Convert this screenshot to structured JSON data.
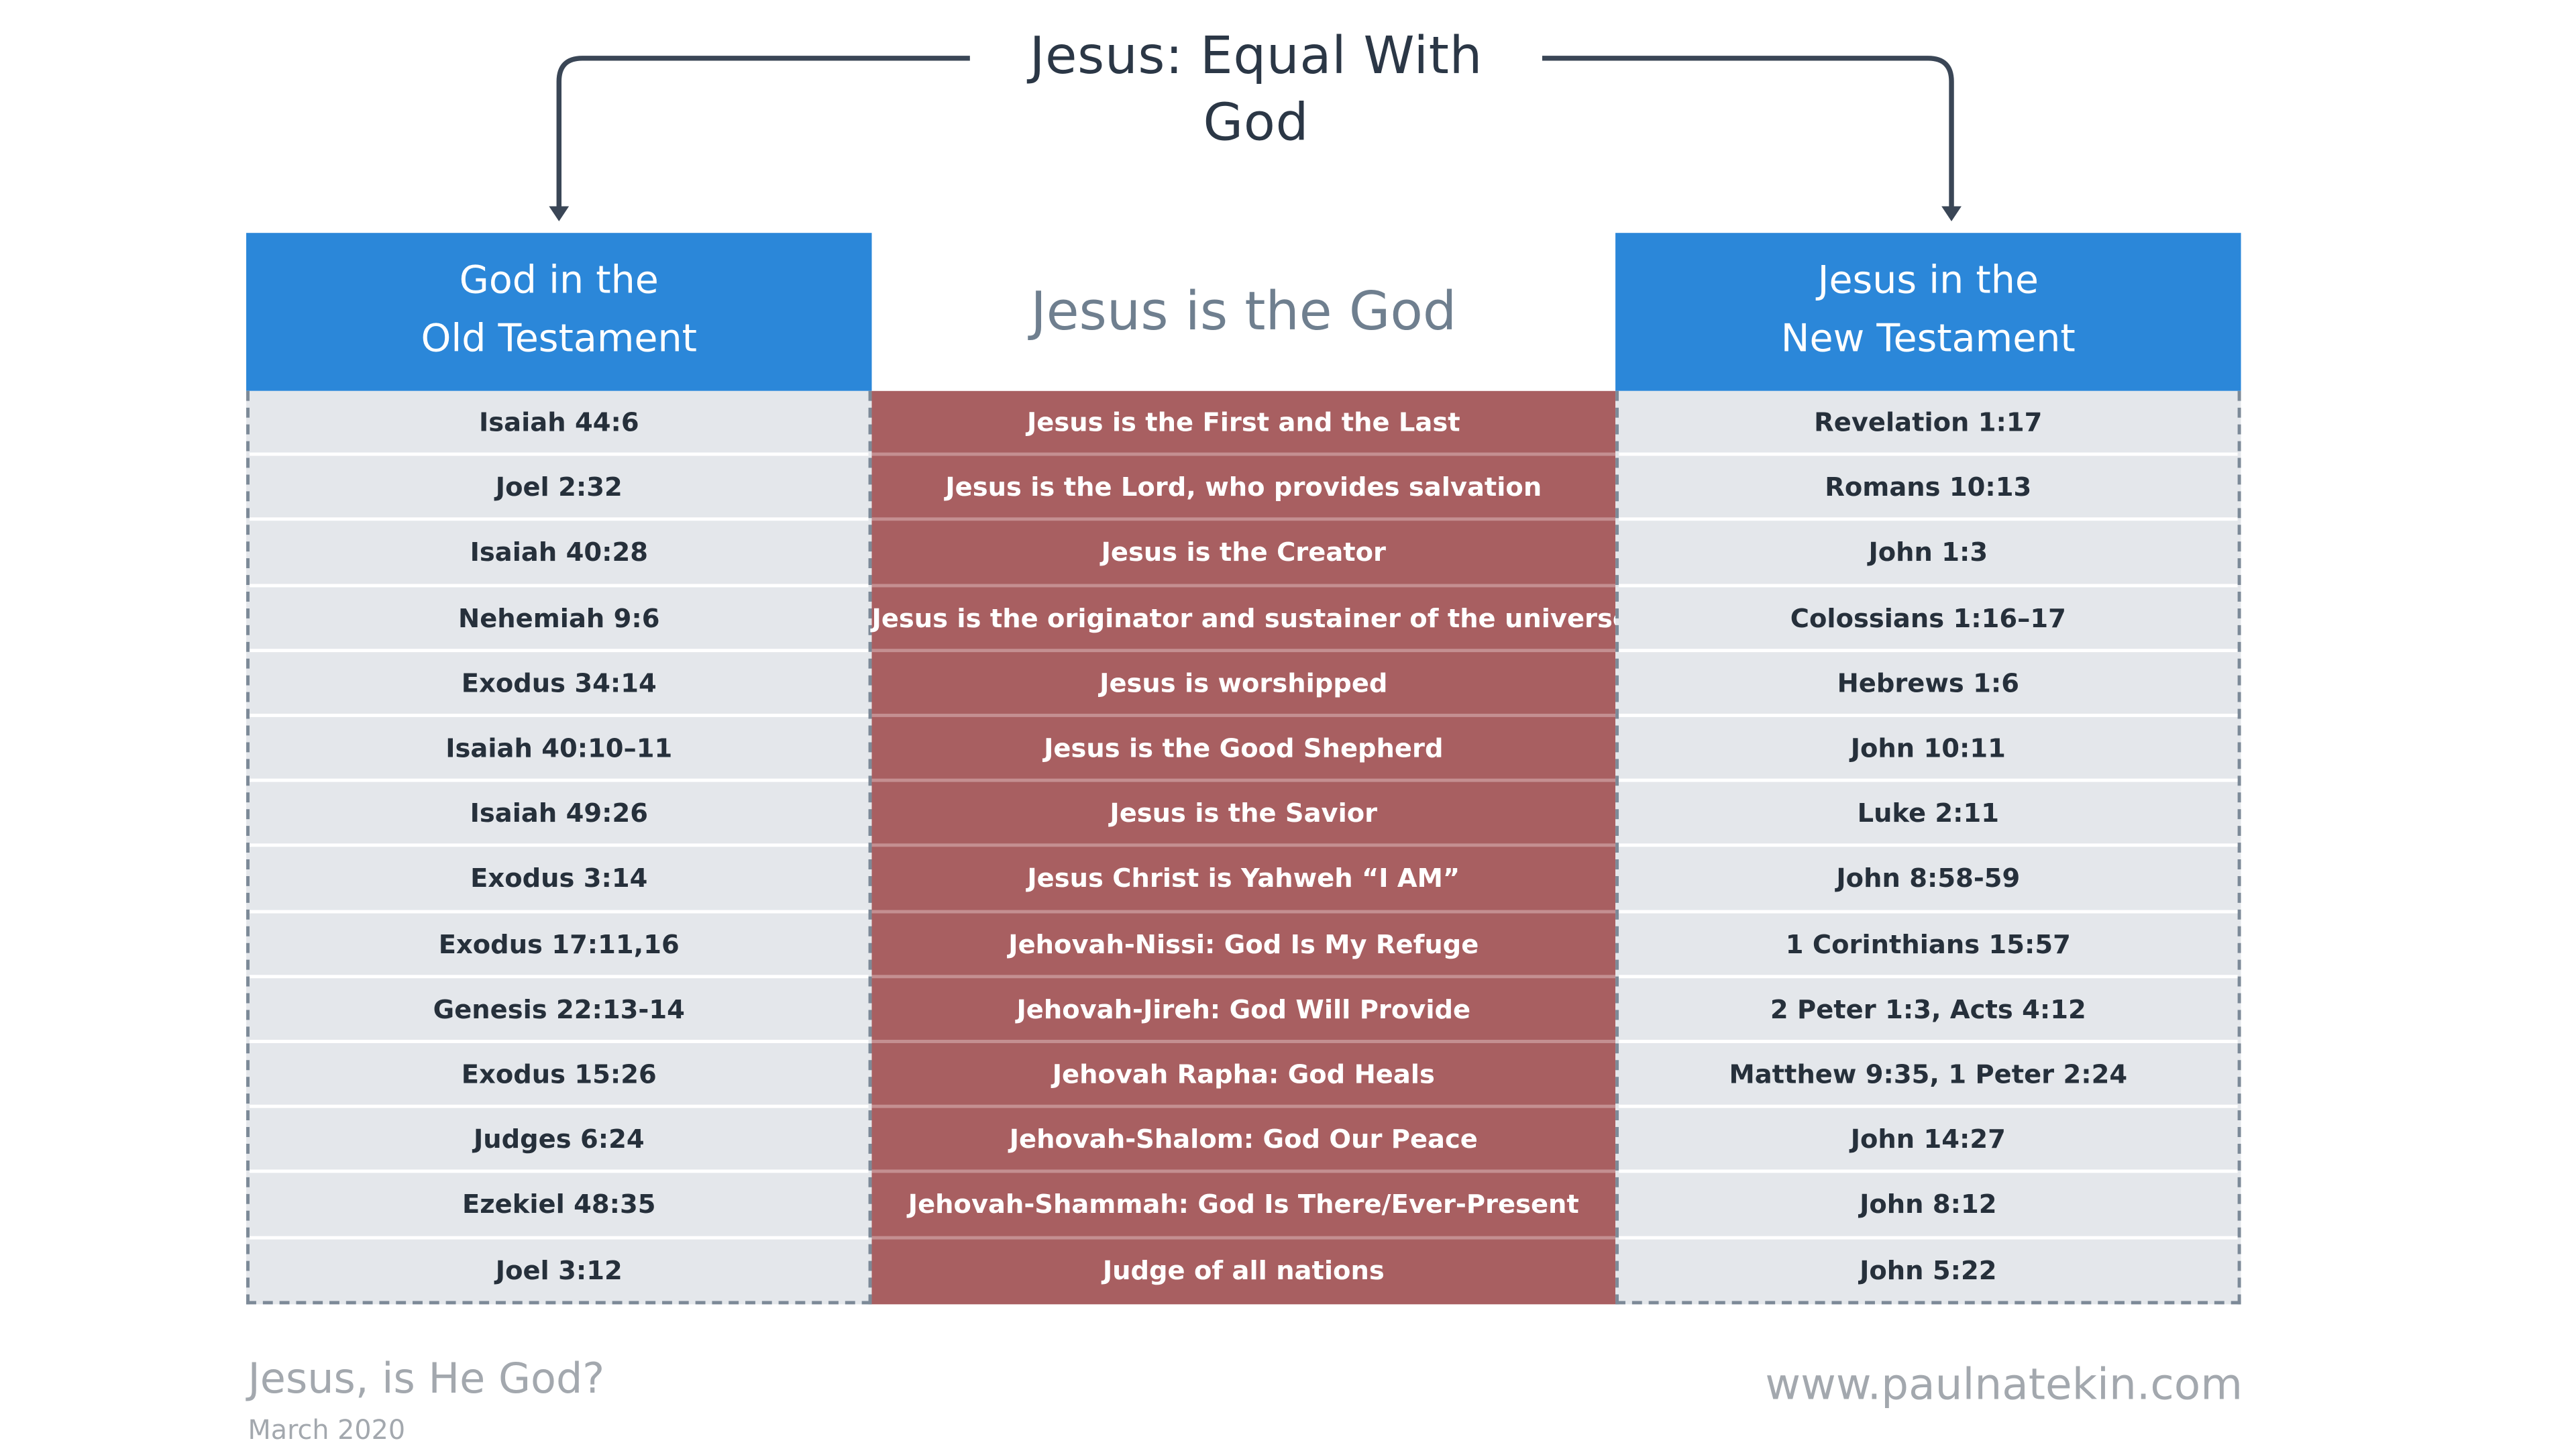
{
  "title": "Jesus: Equal With God",
  "left_header": {
    "line1": "God in the",
    "line2": "Old Testament"
  },
  "middle_header": "Jesus is the God",
  "right_header": {
    "line1": "Jesus in the",
    "line2": "New Testament"
  },
  "rows": [
    {
      "ot": "Isaiah 44:6",
      "claim": "Jesus is the First and the Last",
      "nt": "Revelation 1:17"
    },
    {
      "ot": "Joel 2:32",
      "claim": "Jesus is the Lord, who provides salvation",
      "nt": "Romans 10:13"
    },
    {
      "ot": "Isaiah 40:28",
      "claim": "Jesus is the Creator",
      "nt": "John 1:3"
    },
    {
      "ot": "Nehemiah 9:6",
      "claim": "Jesus is the originator and sustainer of the universe",
      "nt": "Colossians 1:16–17"
    },
    {
      "ot": "Exodus 34:14",
      "claim": "Jesus is worshipped",
      "nt": "Hebrews 1:6"
    },
    {
      "ot": "Isaiah 40:10–11",
      "claim": "Jesus is the Good Shepherd",
      "nt": "John 10:11"
    },
    {
      "ot": "Isaiah 49:26",
      "claim": "Jesus is the Savior",
      "nt": "Luke 2:11"
    },
    {
      "ot": "Exodus 3:14",
      "claim": "Jesus Christ is Yahweh “I AM”",
      "nt": "John 8:58-59"
    },
    {
      "ot": "Exodus 17:11,16",
      "claim": "Jehovah-Nissi: God Is My Refuge",
      "nt": "1 Corinthians 15:57"
    },
    {
      "ot": "Genesis 22:13-14",
      "claim": "Jehovah-Jireh: God Will Provide",
      "nt": "2 Peter 1:3, Acts 4:12"
    },
    {
      "ot": "Exodus 15:26",
      "claim": "Jehovah Rapha: God Heals",
      "nt": "Matthew 9:35, 1 Peter 2:24"
    },
    {
      "ot": "Judges 6:24",
      "claim": "Jehovah-Shalom: God Our Peace",
      "nt": "John 14:27"
    },
    {
      "ot": "Ezekiel 48:35",
      "claim": "Jehovah-Shammah: God Is There/Ever-Present",
      "nt": "John 8:12"
    },
    {
      "ot": "Joel 3:12",
      "claim": "Judge of all nations",
      "nt": "John 5:22"
    }
  ],
  "footer": {
    "title": "Jesus, is He God?",
    "date": "March 2020",
    "url": "www.paulnatekin.com"
  },
  "colors": {
    "header_blue": "#2b87d9",
    "claim_red": "#a85f61",
    "cell_gray": "#e4e7eb",
    "title_dark": "#2b3746"
  }
}
